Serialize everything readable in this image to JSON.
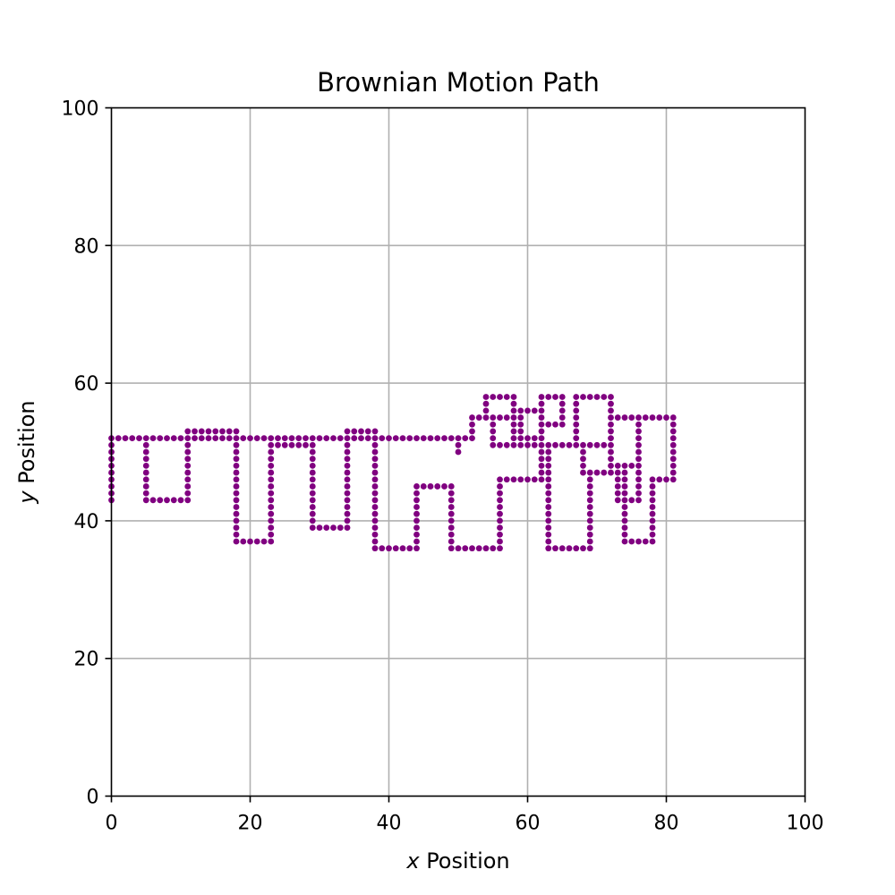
{
  "chart_data": {
    "type": "scatter",
    "title": "Brownian Motion Path",
    "xlabel_var": "x",
    "xlabel_text": " Position",
    "ylabel_var": "y",
    "ylabel_text": " Position",
    "xlim": [
      0,
      100
    ],
    "ylim": [
      0,
      100
    ],
    "xticks": [
      0,
      20,
      40,
      60,
      80,
      100
    ],
    "yticks": [
      0,
      20,
      40,
      60,
      80,
      100
    ],
    "xtick_labels": [
      "0",
      "20",
      "40",
      "60",
      "80",
      "100"
    ],
    "ytick_labels": [
      "0",
      "20",
      "40",
      "60",
      "80",
      "100"
    ],
    "grid": true,
    "marker_color": "#800080",
    "step": 1,
    "series": [
      {
        "start": [
          50,
          50
        ],
        "moves": "NNEENNNEEESSSSEEENNNNWWWWNNNEEEESSSSSSEEEENNNNNNEEESSSSWWWSSSEEEEENNNNNNNEEEEESSSSSSSWWWWSSSSEEEENNNNNNNNEEEESSSSSSSWWWSSSSSEEENNNNNNNNNNNNEEEEESSSSSSSSSWWWSSSSSSSSSWWWWNNNNNNNNNNWWWWWSSSSSSSSSSSWWWWWWNNNNNNNNNNNNNNNWWWWNNNNNEEESSSSSSSSSSWWWWWWSSSSSSSSSSWWWWWWWNNNNNNNNNWWWWWSSSSSSSSSWWWWWWNNNNNNNNNNNNNNNNNWWWWSSSSSSSSSSSSSSWWWWWNNNNNNNNNNNNWWWWWWSSSSSSSSSSSSSSWWWWWNNNNNNNNNNNNNNNNWWWWWWWSSSSSSSSSSWWWWWWNNNNNNNNNWWWWWSSSSSSSSSWWWWWWNNNNNNNNNNNWWWWWWSSSSSSSSSSSWWWWNNNNNNNNNNWWWWWSSSSSSSSSSSSSWWWWWWNNNNNNNNNNNNEEEEEEEEEEEEEEEEEEEEEEEEEEEEEEEEEEEEEEEEEEEEEEEEEEEEEEEEEEEEEEEEEEEEEEEEEEEE"
      }
    ]
  }
}
